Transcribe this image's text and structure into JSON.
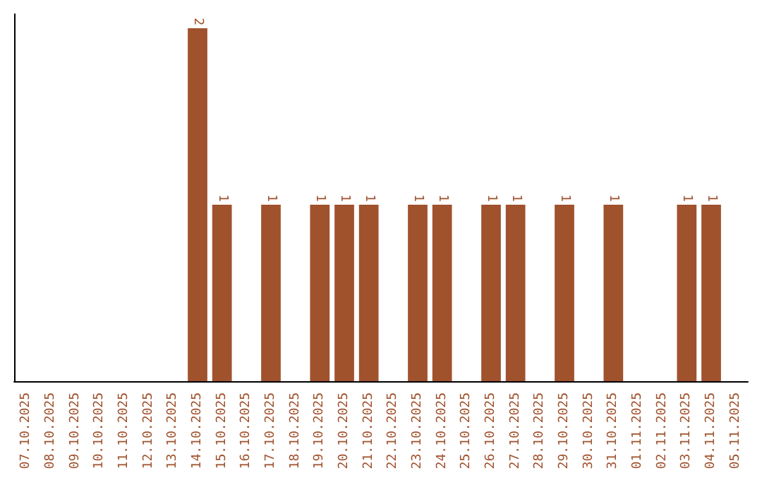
{
  "chart_data": {
    "type": "bar",
    "categories": [
      "07.10.2025",
      "08.10.2025",
      "09.10.2025",
      "10.10.2025",
      "11.10.2025",
      "12.10.2025",
      "13.10.2025",
      "14.10.2025",
      "15.10.2025",
      "16.10.2025",
      "17.10.2025",
      "18.10.2025",
      "19.10.2025",
      "20.10.2025",
      "21.10.2025",
      "22.10.2025",
      "23.10.2025",
      "24.10.2025",
      "25.10.2025",
      "26.10.2025",
      "27.10.2025",
      "28.10.2025",
      "29.10.2025",
      "30.10.2025",
      "31.10.2025",
      "01.11.2025",
      "02.11.2025",
      "03.11.2025",
      "04.11.2025",
      "05.11.2025"
    ],
    "values": [
      0,
      0,
      0,
      0,
      0,
      0,
      0,
      2,
      1,
      0,
      1,
      0,
      1,
      1,
      1,
      0,
      1,
      1,
      0,
      1,
      1,
      0,
      1,
      0,
      1,
      0,
      0,
      1,
      1,
      0
    ],
    "color": "#a0522d",
    "value_labels": [
      null,
      null,
      null,
      null,
      null,
      null,
      null,
      "2",
      "1",
      null,
      "1",
      null,
      "1",
      "1",
      "1",
      null,
      "1",
      "1",
      null,
      "1",
      "1",
      null,
      "1",
      null,
      "1",
      null,
      null,
      "1",
      "1",
      null
    ],
    "grid": false
  }
}
